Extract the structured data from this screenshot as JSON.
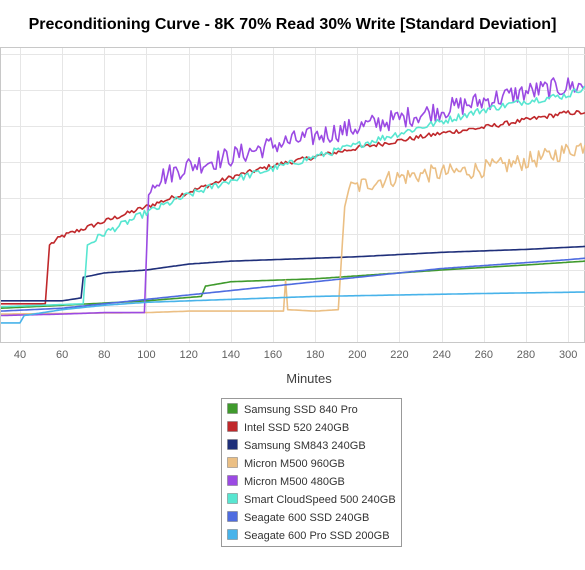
{
  "chart_data": {
    "type": "line",
    "title": "Preconditioning Curve - 8K 70% Read 30% Write [Standard Deviation]",
    "xlabel": "Minutes",
    "ylabel": "",
    "xlim": [
      31,
      308
    ],
    "ylim": [
      0,
      1
    ],
    "x_ticks": [
      40,
      60,
      80,
      100,
      120,
      140,
      160,
      180,
      200,
      220,
      240,
      260,
      280,
      300
    ],
    "y_ticks_unlabeled": 8,
    "grid": true,
    "legend_position": "bottom",
    "series": [
      {
        "name": "Samsung SSD 840 Pro",
        "color": "#3f9a2c",
        "x": [
          31,
          60,
          100,
          126,
          128,
          140,
          160,
          180,
          200,
          240,
          280,
          308
        ],
        "y": [
          0.115,
          0.125,
          0.14,
          0.155,
          0.19,
          0.205,
          0.21,
          0.215,
          0.225,
          0.245,
          0.262,
          0.275
        ]
      },
      {
        "name": "Intel SSD 520 240GB",
        "color": "#c0282b",
        "x": [
          31,
          52,
          54,
          60,
          80,
          100,
          120,
          140,
          160,
          180,
          200,
          220,
          240,
          260,
          280,
          300,
          308
        ],
        "y": [
          0.13,
          0.13,
          0.33,
          0.36,
          0.41,
          0.46,
          0.51,
          0.56,
          0.6,
          0.63,
          0.66,
          0.685,
          0.71,
          0.73,
          0.755,
          0.78,
          0.78
        ]
      },
      {
        "name": "Samsung SM843 240GB",
        "color": "#1f2f7a",
        "x": [
          31,
          60,
          69,
          70,
          80,
          100,
          120,
          140,
          160,
          180,
          200,
          240,
          280,
          308
        ],
        "y": [
          0.14,
          0.14,
          0.15,
          0.22,
          0.235,
          0.245,
          0.265,
          0.275,
          0.28,
          0.285,
          0.29,
          0.305,
          0.315,
          0.325
        ]
      },
      {
        "name": "Micron M500 960GB",
        "color": "#ebbf84",
        "x": [
          31,
          100,
          120,
          140,
          160,
          165,
          166,
          167,
          180,
          191,
          194,
          196,
          210,
          230,
          250,
          270,
          290,
          308
        ],
        "y": [
          0.095,
          0.1,
          0.105,
          0.105,
          0.105,
          0.105,
          0.21,
          0.11,
          0.105,
          0.11,
          0.46,
          0.52,
          0.55,
          0.57,
          0.58,
          0.6,
          0.63,
          0.67
        ]
      },
      {
        "name": "Micron M500 480GB",
        "color": "#9b4ae3",
        "x": [
          31,
          60,
          80,
          99,
          101,
          103,
          110,
          120,
          140,
          160,
          180,
          200,
          220,
          240,
          260,
          280,
          300,
          308
        ],
        "y": [
          0.09,
          0.095,
          0.1,
          0.1,
          0.5,
          0.55,
          0.57,
          0.6,
          0.63,
          0.67,
          0.7,
          0.73,
          0.76,
          0.79,
          0.82,
          0.85,
          0.87,
          0.87
        ]
      },
      {
        "name": "Smart CloudSpeed 500 240GB",
        "color": "#58e6d1",
        "x": [
          31,
          70,
          72,
          80,
          100,
          120,
          140,
          160,
          180,
          200,
          220,
          240,
          260,
          280,
          300,
          308
        ],
        "y": [
          0.12,
          0.13,
          0.33,
          0.37,
          0.44,
          0.5,
          0.55,
          0.59,
          0.63,
          0.67,
          0.71,
          0.75,
          0.79,
          0.82,
          0.84,
          0.87
        ]
      },
      {
        "name": "Seagate 600 SSD 240GB",
        "color": "#4f6ce0",
        "x": [
          31,
          60,
          100,
          120,
          140,
          160,
          180,
          200,
          220,
          240,
          260,
          280,
          300,
          308
        ],
        "y": [
          0.105,
          0.115,
          0.145,
          0.16,
          0.175,
          0.19,
          0.205,
          0.22,
          0.235,
          0.25,
          0.26,
          0.27,
          0.28,
          0.285
        ]
      },
      {
        "name": "Seagate 600 Pro SSD 200GB",
        "color": "#48b3ea",
        "x": [
          31,
          40,
          42,
          60,
          80,
          100,
          140,
          180,
          220,
          260,
          308
        ],
        "y": [
          0.065,
          0.065,
          0.09,
          0.11,
          0.125,
          0.135,
          0.145,
          0.155,
          0.16,
          0.165,
          0.17
        ]
      }
    ]
  }
}
